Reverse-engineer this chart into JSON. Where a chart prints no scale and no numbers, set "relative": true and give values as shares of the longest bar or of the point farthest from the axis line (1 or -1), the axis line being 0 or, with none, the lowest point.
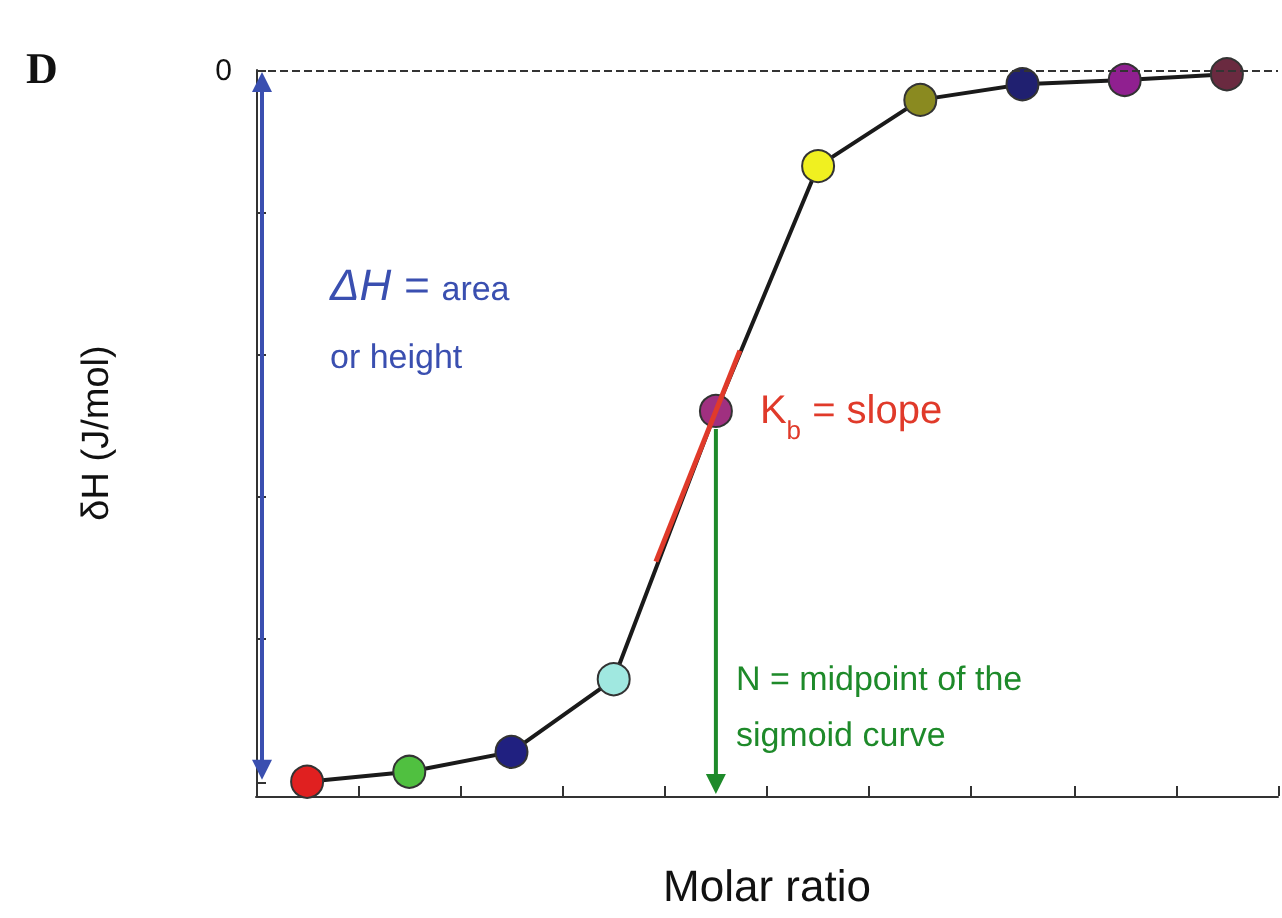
{
  "chart_data": {
    "type": "line",
    "title": "D",
    "xlabel": "Molar ratio",
    "ylabel": "δH (J/mol)",
    "relative": true,
    "categories": [
      null,
      null,
      null,
      null,
      null,
      null,
      null,
      null,
      null,
      null
    ],
    "series": [
      {
        "color": "#1a1a1a",
        "marker": "circle",
        "colors": [
          "#e02020",
          "#50c040",
          "#202080",
          "#a0e8e0",
          "#a03080",
          "#f0f020",
          "#8a8a20",
          "#202070",
          "#902090",
          "#6a2a40"
        ],
        "values": [
          -1,
          -0.986,
          -0.958,
          -0.856,
          -0.479,
          -0.135,
          -0.042,
          -0.02,
          -0.014,
          -0.006
        ]
      }
    ],
    "ref_lines": [
      {
        "axis": "y",
        "value": 0,
        "label": "0",
        "line_style": "dashed",
        "color": "#333333"
      }
    ],
    "annotations": [
      "ΔH = area or height",
      "K$_{b}$ = slope",
      "N = midpoint of the sigmoid curve"
    ],
    "grid": false
  }
}
